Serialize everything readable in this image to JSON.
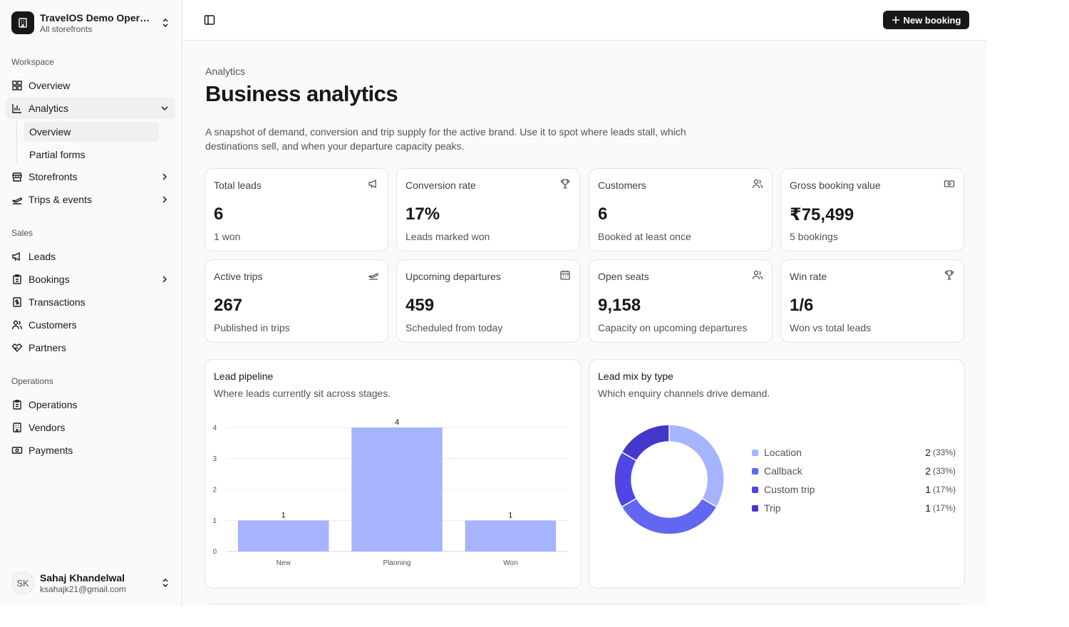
{
  "brand": {
    "title": "TravelOS Demo Operator",
    "subtitle": "All storefronts"
  },
  "sidebar": {
    "groups": {
      "workspace": "Workspace",
      "sales": "Sales",
      "operations": "Operations"
    },
    "workspace_items": {
      "overview": "Overview",
      "analytics": "Analytics",
      "analytics_sub": {
        "overview": "Overview",
        "partial_forms": "Partial forms"
      },
      "storefronts": "Storefronts",
      "trips_events": "Trips & events"
    },
    "sales_items": {
      "leads": "Leads",
      "bookings": "Bookings",
      "transactions": "Transactions",
      "customers": "Customers",
      "partners": "Partners"
    },
    "operations_items": {
      "operations": "Operations",
      "vendors": "Vendors",
      "payments": "Payments"
    }
  },
  "user": {
    "initials": "SK",
    "name": "Sahaj Khandelwal",
    "email": "ksahajk21@gmail.com"
  },
  "topbar": {
    "new_booking": "New booking"
  },
  "page": {
    "breadcrumb": "Analytics",
    "title": "Business analytics",
    "description": "A snapshot of demand, conversion and trip supply for the active brand. Use it to spot where leads stall, which destinations sell, and when your departure capacity peaks."
  },
  "stats": [
    {
      "label": "Total leads",
      "value": "6",
      "sub": "1 won",
      "icon": "megaphone-icon"
    },
    {
      "label": "Conversion rate",
      "value": "17%",
      "sub": "Leads marked won",
      "icon": "trophy-icon"
    },
    {
      "label": "Customers",
      "value": "6",
      "sub": "Booked at least once",
      "icon": "users-icon"
    },
    {
      "label": "Gross booking value",
      "value": "₹75,499",
      "sub": "5 bookings",
      "icon": "banknote-icon"
    },
    {
      "label": "Active trips",
      "value": "267",
      "sub": "Published in trips",
      "icon": "plane-takeoff-icon"
    },
    {
      "label": "Upcoming departures",
      "value": "459",
      "sub": "Scheduled from today",
      "icon": "calendar-icon"
    },
    {
      "label": "Open seats",
      "value": "9,158",
      "sub": "Capacity on upcoming departures",
      "icon": "users-icon"
    },
    {
      "label": "Win rate",
      "value": "1/6",
      "sub": "Won vs total leads",
      "icon": "trophy-icon"
    }
  ],
  "pipeline": {
    "title": "Lead pipeline",
    "subtitle": "Where leads currently sit across stages."
  },
  "leadmix": {
    "title": "Lead mix by type",
    "subtitle": "Which enquiry channels drive demand."
  },
  "chart_data": [
    {
      "type": "bar",
      "title": "Lead pipeline",
      "categories": [
        "New",
        "Planning",
        "Won"
      ],
      "values": [
        1,
        4,
        1
      ],
      "ylim": [
        0,
        4
      ],
      "yticks": [
        "0",
        "1",
        "2",
        "3",
        "4"
      ],
      "grid": true,
      "color": "#a5b4fc"
    },
    {
      "type": "pie",
      "title": "Lead mix by type",
      "donut": true,
      "slices": [
        {
          "name": "Location",
          "value": 2,
          "pct": "(33%)",
          "color": "#a5b4fc"
        },
        {
          "name": "Callback",
          "value": 2,
          "pct": "(33%)",
          "color": "#6366f1"
        },
        {
          "name": "Custom trip",
          "value": 1,
          "pct": "(17%)",
          "color": "#4f46e5"
        },
        {
          "name": "Trip",
          "value": 1,
          "pct": "(17%)",
          "color": "#4338ca"
        }
      ],
      "legend": "right"
    }
  ]
}
